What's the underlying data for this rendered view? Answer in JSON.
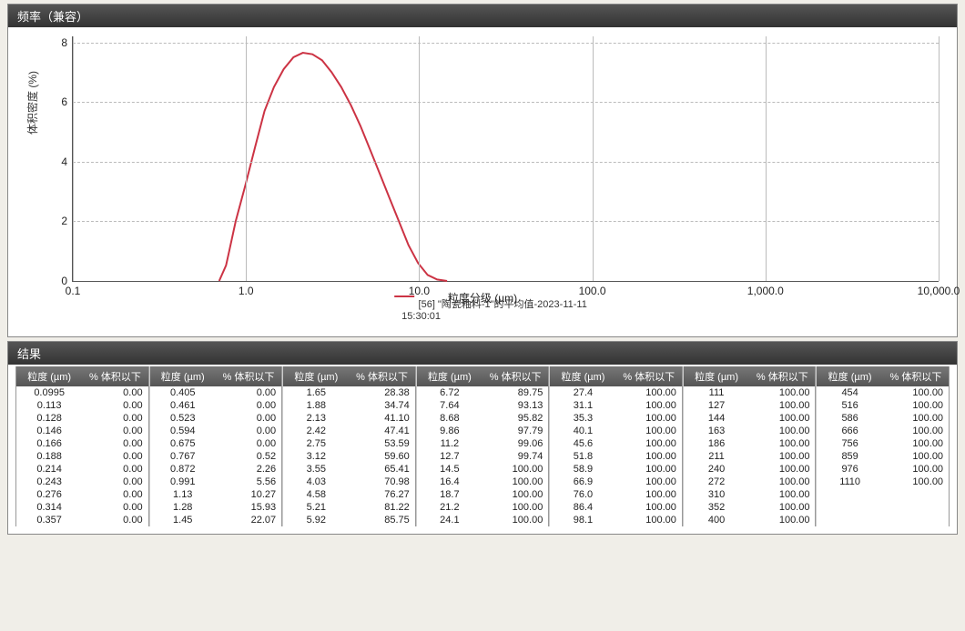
{
  "chart_panel": {
    "title": "频率（兼容）"
  },
  "chart": {
    "type": "line",
    "ylabel": "体积密度 (%)",
    "xlabel": "粒度分级 (µm)",
    "xscale": "log",
    "xlim": [
      0.1,
      10000
    ],
    "ylim": [
      0,
      8.2
    ],
    "yticks": [
      0,
      2,
      4,
      6,
      8
    ],
    "xticks": [
      0.1,
      1.0,
      10.0,
      100.0,
      1000.0,
      10000.0
    ],
    "xtick_labels": [
      "0.1",
      "1.0",
      "10.0",
      "100.0",
      "1,000.0",
      "10,000.0"
    ],
    "grid_color_h": "#bbbbbb",
    "grid_color_v": "#bbbbbb",
    "line_color": "#cc3344",
    "line_width": 2,
    "legend_text1": "[56] \"陶瓷釉料-1\"的平均值-2023-11-11",
    "legend_text2": "15:30:01",
    "curve_points": [
      [
        0.7,
        0.0
      ],
      [
        0.767,
        0.52
      ],
      [
        0.8,
        1.0
      ],
      [
        0.872,
        2.0
      ],
      [
        0.991,
        3.2
      ],
      [
        1.13,
        4.5
      ],
      [
        1.28,
        5.7
      ],
      [
        1.45,
        6.5
      ],
      [
        1.65,
        7.1
      ],
      [
        1.88,
        7.5
      ],
      [
        2.13,
        7.65
      ],
      [
        2.42,
        7.6
      ],
      [
        2.75,
        7.4
      ],
      [
        3.12,
        7.0
      ],
      [
        3.55,
        6.5
      ],
      [
        4.03,
        5.9
      ],
      [
        4.58,
        5.2
      ],
      [
        5.21,
        4.4
      ],
      [
        5.92,
        3.6
      ],
      [
        6.72,
        2.8
      ],
      [
        7.64,
        2.0
      ],
      [
        8.68,
        1.2
      ],
      [
        9.86,
        0.6
      ],
      [
        11.2,
        0.2
      ],
      [
        12.7,
        0.05
      ],
      [
        14.5,
        0.0
      ]
    ]
  },
  "results_panel": {
    "title": "结果",
    "col_label_size": "粒度 (µm)",
    "col_label_pct": "% 体积以下",
    "groups": [
      [
        [
          "0.0995",
          "0.00"
        ],
        [
          "0.113",
          "0.00"
        ],
        [
          "0.128",
          "0.00"
        ],
        [
          "0.146",
          "0.00"
        ],
        [
          "0.166",
          "0.00"
        ],
        [
          "0.188",
          "0.00"
        ],
        [
          "0.214",
          "0.00"
        ],
        [
          "0.243",
          "0.00"
        ],
        [
          "0.276",
          "0.00"
        ],
        [
          "0.314",
          "0.00"
        ],
        [
          "0.357",
          "0.00"
        ]
      ],
      [
        [
          "0.405",
          "0.00"
        ],
        [
          "0.461",
          "0.00"
        ],
        [
          "0.523",
          "0.00"
        ],
        [
          "0.594",
          "0.00"
        ],
        [
          "0.675",
          "0.00"
        ],
        [
          "0.767",
          "0.52"
        ],
        [
          "0.872",
          "2.26"
        ],
        [
          "0.991",
          "5.56"
        ],
        [
          "1.13",
          "10.27"
        ],
        [
          "1.28",
          "15.93"
        ],
        [
          "1.45",
          "22.07"
        ]
      ],
      [
        [
          "1.65",
          "28.38"
        ],
        [
          "1.88",
          "34.74"
        ],
        [
          "2.13",
          "41.10"
        ],
        [
          "2.42",
          "47.41"
        ],
        [
          "2.75",
          "53.59"
        ],
        [
          "3.12",
          "59.60"
        ],
        [
          "3.55",
          "65.41"
        ],
        [
          "4.03",
          "70.98"
        ],
        [
          "4.58",
          "76.27"
        ],
        [
          "5.21",
          "81.22"
        ],
        [
          "5.92",
          "85.75"
        ]
      ],
      [
        [
          "6.72",
          "89.75"
        ],
        [
          "7.64",
          "93.13"
        ],
        [
          "8.68",
          "95.82"
        ],
        [
          "9.86",
          "97.79"
        ],
        [
          "11.2",
          "99.06"
        ],
        [
          "12.7",
          "99.74"
        ],
        [
          "14.5",
          "100.00"
        ],
        [
          "16.4",
          "100.00"
        ],
        [
          "18.7",
          "100.00"
        ],
        [
          "21.2",
          "100.00"
        ],
        [
          "24.1",
          "100.00"
        ]
      ],
      [
        [
          "27.4",
          "100.00"
        ],
        [
          "31.1",
          "100.00"
        ],
        [
          "35.3",
          "100.00"
        ],
        [
          "40.1",
          "100.00"
        ],
        [
          "45.6",
          "100.00"
        ],
        [
          "51.8",
          "100.00"
        ],
        [
          "58.9",
          "100.00"
        ],
        [
          "66.9",
          "100.00"
        ],
        [
          "76.0",
          "100.00"
        ],
        [
          "86.4",
          "100.00"
        ],
        [
          "98.1",
          "100.00"
        ]
      ],
      [
        [
          "111",
          "100.00"
        ],
        [
          "127",
          "100.00"
        ],
        [
          "144",
          "100.00"
        ],
        [
          "163",
          "100.00"
        ],
        [
          "186",
          "100.00"
        ],
        [
          "211",
          "100.00"
        ],
        [
          "240",
          "100.00"
        ],
        [
          "272",
          "100.00"
        ],
        [
          "310",
          "100.00"
        ],
        [
          "352",
          "100.00"
        ],
        [
          "400",
          "100.00"
        ]
      ],
      [
        [
          "454",
          "100.00"
        ],
        [
          "516",
          "100.00"
        ],
        [
          "586",
          "100.00"
        ],
        [
          "666",
          "100.00"
        ],
        [
          "756",
          "100.00"
        ],
        [
          "859",
          "100.00"
        ],
        [
          "976",
          "100.00"
        ],
        [
          "1110",
          "100.00"
        ]
      ]
    ]
  }
}
